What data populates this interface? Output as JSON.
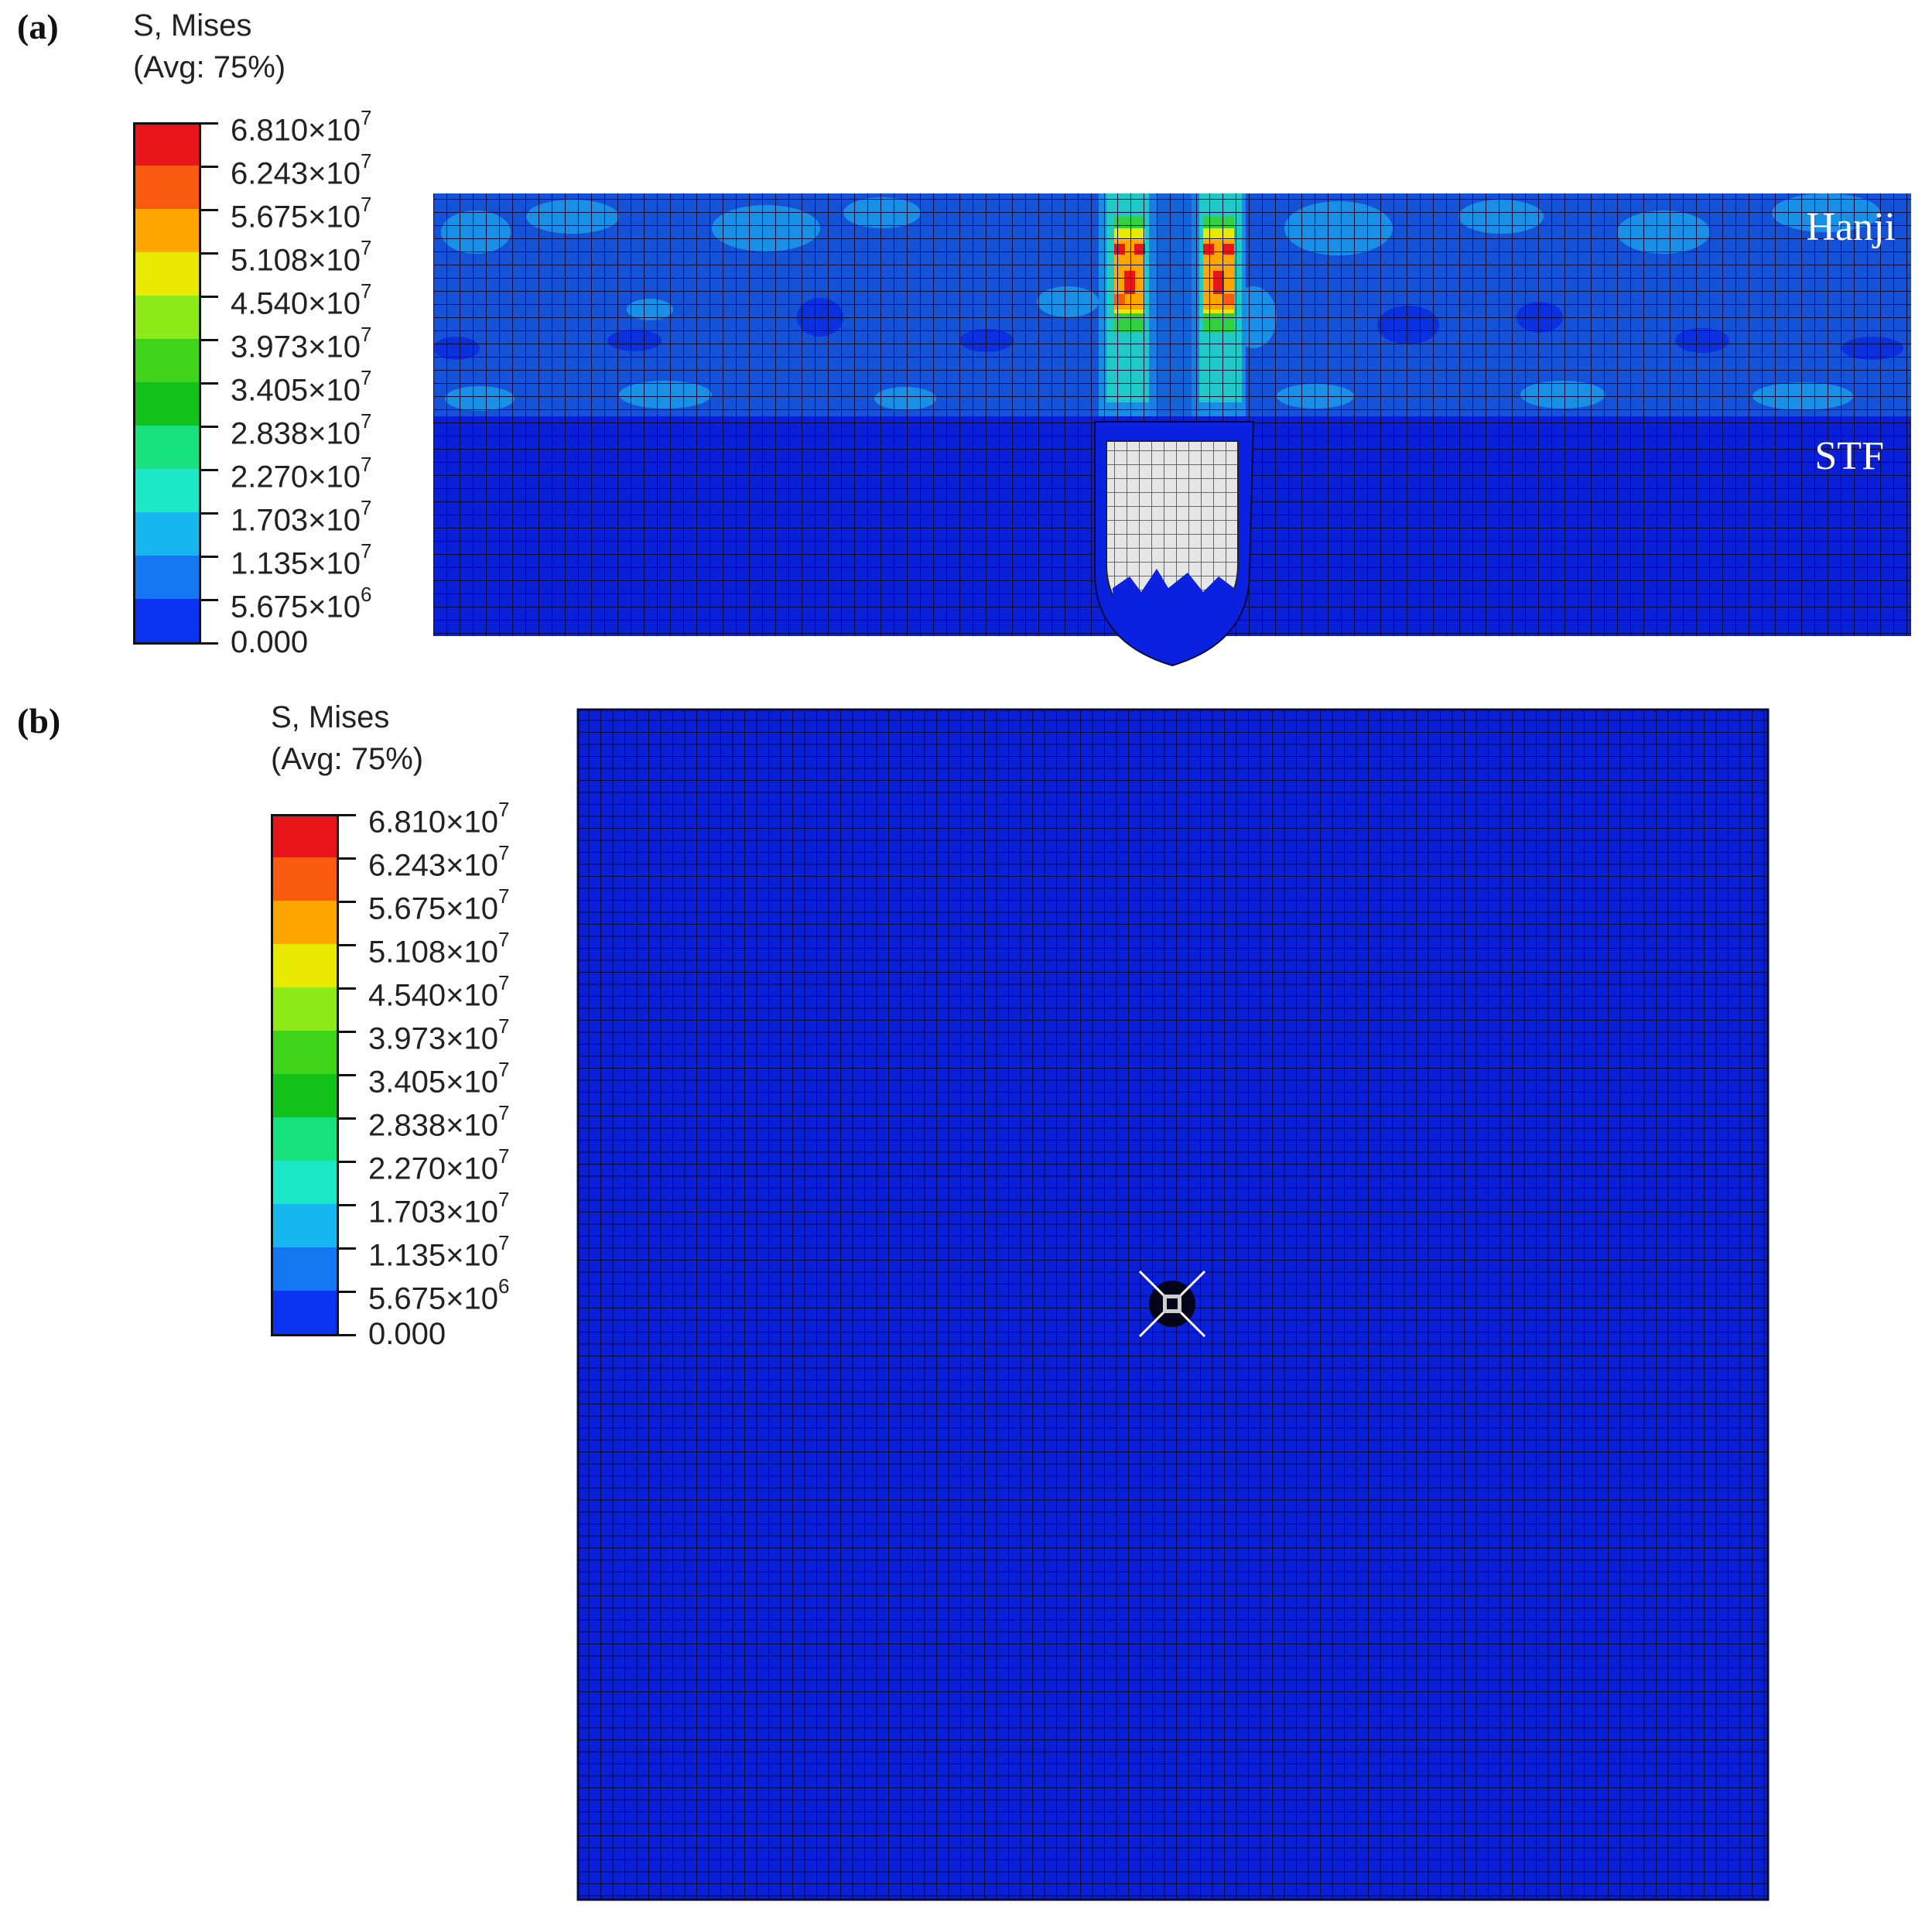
{
  "panels": {
    "a": {
      "letter": "(a)",
      "legend_title_line1": "S, Mises",
      "legend_title_line2": "(Avg: 75%)",
      "material_labels": {
        "top": "Hanji",
        "bottom": "STF"
      }
    },
    "b": {
      "letter": "(b)",
      "legend_title_line1": "S, Mises",
      "legend_title_line2": "(Avg: 75%)"
    }
  },
  "legend": {
    "ticks": [
      {
        "mantissa": "6.810",
        "exp": "7"
      },
      {
        "mantissa": "6.243",
        "exp": "7"
      },
      {
        "mantissa": "5.675",
        "exp": "7"
      },
      {
        "mantissa": "5.108",
        "exp": "7"
      },
      {
        "mantissa": "4.540",
        "exp": "7"
      },
      {
        "mantissa": "3.973",
        "exp": "7"
      },
      {
        "mantissa": "3.405",
        "exp": "7"
      },
      {
        "mantissa": "2.838",
        "exp": "7"
      },
      {
        "mantissa": "2.270",
        "exp": "7"
      },
      {
        "mantissa": "1.703",
        "exp": "7"
      },
      {
        "mantissa": "1.135",
        "exp": "7"
      },
      {
        "mantissa": "5.675",
        "exp": "6"
      },
      {
        "mantissa": "0.000",
        "exp": ""
      }
    ],
    "colors": [
      "#e8151b",
      "#fa5a10",
      "#ffa500",
      "#e8e800",
      "#8fea1a",
      "#3fd41a",
      "#12c21a",
      "#17e27e",
      "#1ce8c8",
      "#17b8f0",
      "#1277f0",
      "#0a34f0"
    ]
  },
  "colors": {
    "mesh_base": "#0a1fd8",
    "hanji_base": "#1453d8",
    "grid_line": "#0a0a3a",
    "projectile": "#e6e6e6"
  }
}
